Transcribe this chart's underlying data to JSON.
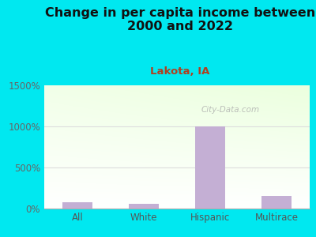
{
  "title": "Change in per capita income between\n2000 and 2022",
  "subtitle": "Lakota, IA",
  "categories": [
    "All",
    "White",
    "Hispanic",
    "Multirace"
  ],
  "values": [
    75,
    60,
    1000,
    155
  ],
  "bar_color": "#c4afd4",
  "background_outer": "#00e8f0",
  "title_fontsize": 11.5,
  "title_color": "#111111",
  "subtitle_fontsize": 9.5,
  "subtitle_color": "#b04020",
  "tick_label_fontsize": 8.5,
  "ytick_color": "#666666",
  "xtick_color": "#555555",
  "ylim": [
    0,
    1500
  ],
  "yticks": [
    0,
    500,
    1000,
    1500
  ],
  "ytick_labels": [
    "0%",
    "500%",
    "1000%",
    "1500%"
  ],
  "watermark": "City-Data.com",
  "grid_color": "#dddddd",
  "grid_alpha": 1.0,
  "chart_bg_topleft": "#e8f5e0",
  "chart_bg_topright": "#f5fff8",
  "chart_bg_bottom": "#ffffff"
}
